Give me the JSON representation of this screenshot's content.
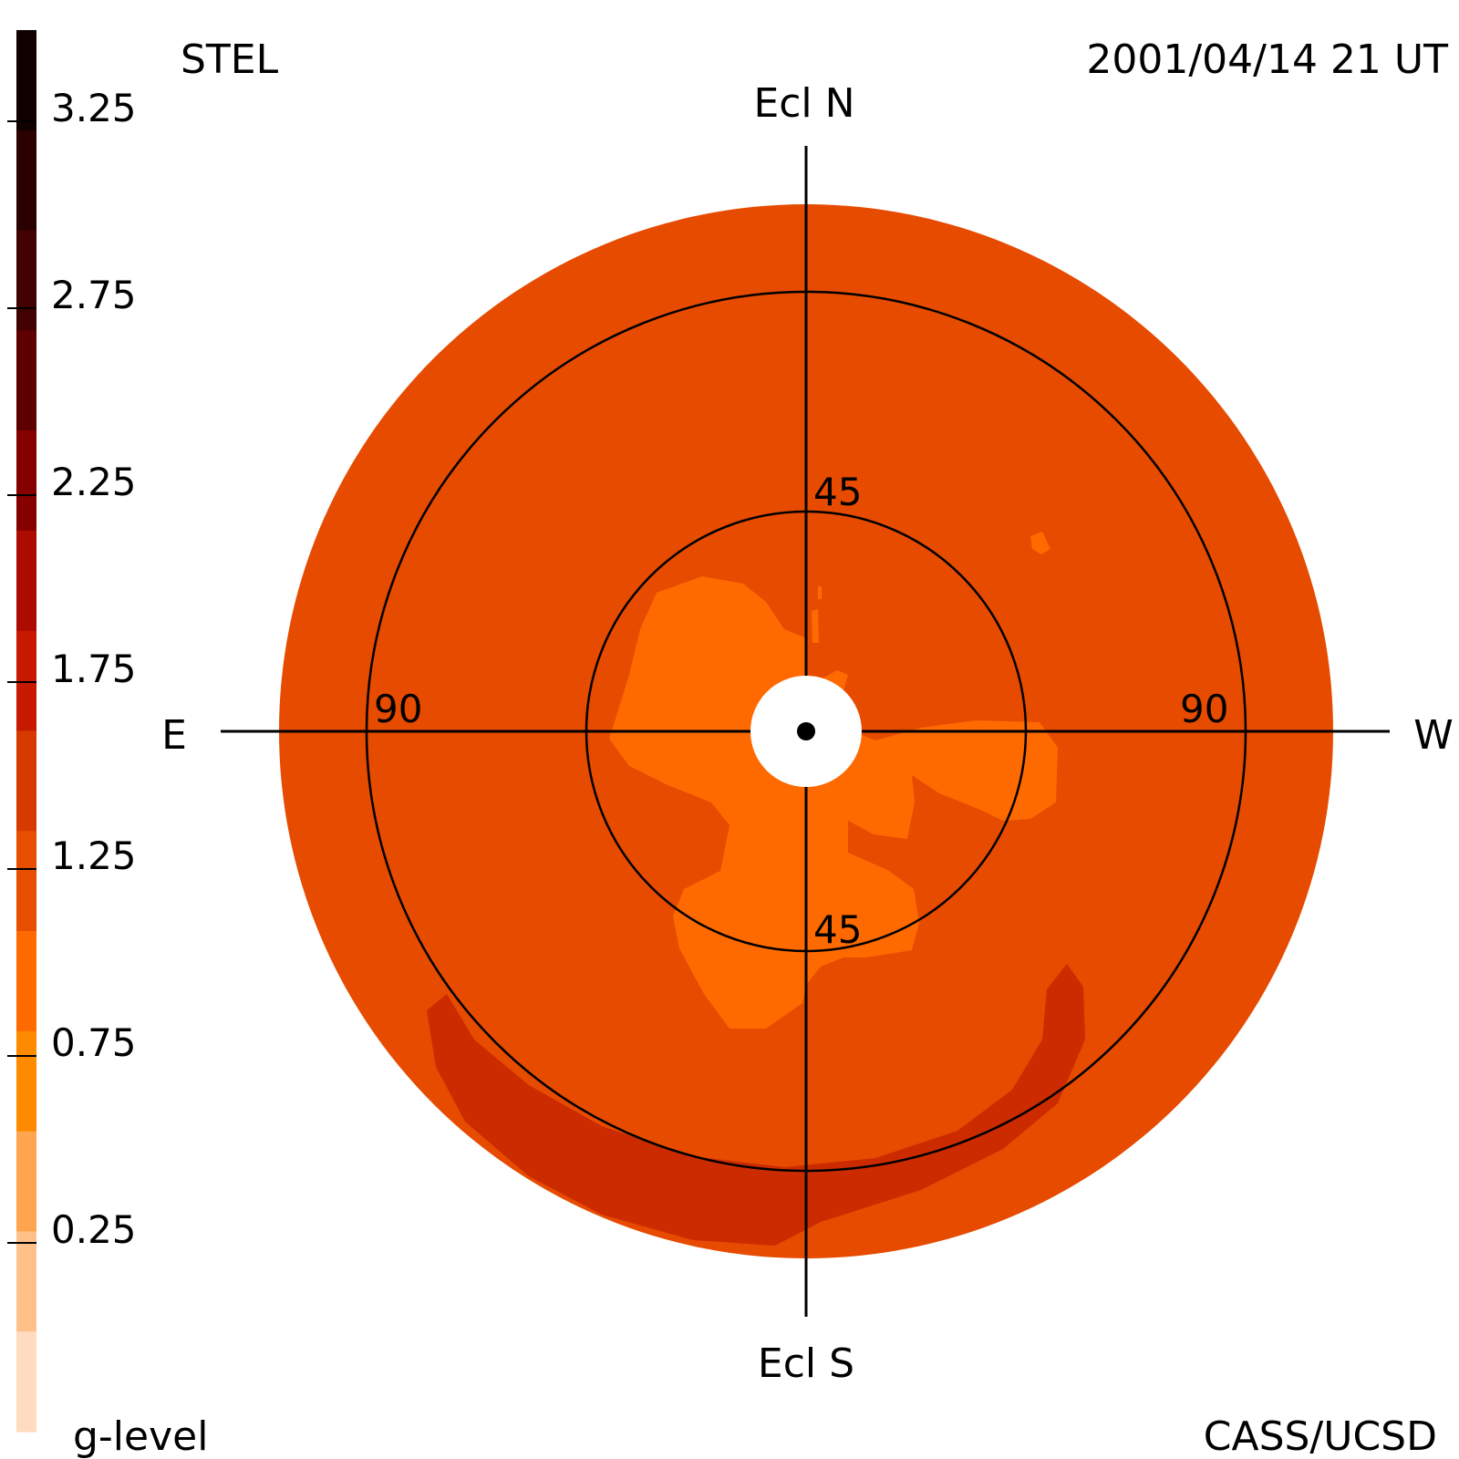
{
  "header": {
    "left_label": "STEL",
    "right_label": "2001/04/14 21 UT"
  },
  "footer": {
    "left_label": "g-level",
    "right_label": "CASS/UCSD"
  },
  "colorbar": {
    "ticks": [
      "3.25",
      "2.75",
      "2.25",
      "1.75",
      "1.25",
      "0.75",
      "0.25"
    ],
    "colors_top_to_bottom": [
      "#100000",
      "#2a0000",
      "#420000",
      "#5e0000",
      "#860000",
      "#ad0a00",
      "#c81a00",
      "#d63a00",
      "#e84e00",
      "#ff6a00",
      "#ff8a00",
      "#ffa550",
      "#ffc08a",
      "#ffdcc0"
    ]
  },
  "sky_map": {
    "labels": {
      "north": "Ecl N",
      "south": "Ecl S",
      "east": "E",
      "west": "W"
    },
    "ring_labels": {
      "inner_top": "45",
      "inner_bottom": "45",
      "outer_left": "90",
      "outer_right": "90"
    },
    "colors": {
      "background_level": "#e64b00",
      "low_level": "#ff6a00",
      "high_level": "#cc2b00",
      "sun_disk": "#ffffff",
      "lines": "#000000"
    }
  }
}
